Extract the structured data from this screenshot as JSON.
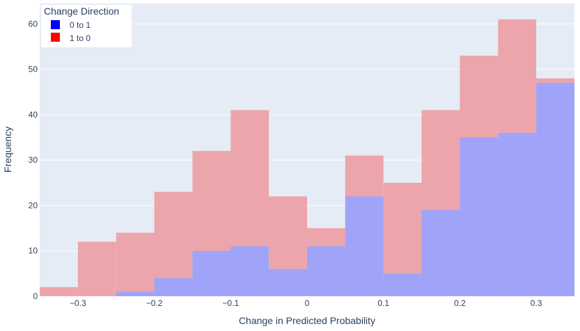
{
  "chart_data": {
    "type": "bar",
    "barmode": "overlay",
    "title": "",
    "xlabel": "Change in Predicted Probability",
    "ylabel": "Frequency",
    "xlim": [
      -0.35,
      0.35
    ],
    "ylim": [
      0,
      64.5
    ],
    "bin_edges": [
      -0.35,
      -0.3,
      -0.25,
      -0.2,
      -0.15,
      -0.1,
      -0.05,
      0,
      0.05,
      0.1,
      0.15,
      0.2,
      0.25,
      0.3,
      0.35
    ],
    "x_ticks": [
      -0.3,
      -0.2,
      -0.1,
      0,
      0.1,
      0.2,
      0.3
    ],
    "x_tick_labels": [
      "−0.3",
      "−0.2",
      "−0.1",
      "0",
      "0.1",
      "0.2",
      "0.3"
    ],
    "y_ticks": [
      0,
      10,
      20,
      30,
      40,
      50,
      60
    ],
    "y_tick_labels": [
      "0",
      "10",
      "20",
      "30",
      "40",
      "50",
      "60"
    ],
    "grid": true,
    "legend": {
      "title": "Change Direction",
      "placement": "top-left"
    },
    "series": [
      {
        "name": "0 to 1",
        "color": "#0000ff",
        "render_color": "#a0a4f8",
        "values": [
          0,
          0,
          1,
          4,
          10,
          11,
          6,
          11,
          22,
          5,
          19,
          35,
          36,
          47
        ]
      },
      {
        "name": "1 to 0",
        "color": "#ff0000",
        "render_color": "#eca5ab",
        "values": [
          2,
          12,
          14,
          23,
          32,
          41,
          22,
          15,
          31,
          25,
          41,
          53,
          61,
          48
        ]
      }
    ],
    "plot_background": "#e5ecf6",
    "gridline_color": "#ffffff"
  }
}
